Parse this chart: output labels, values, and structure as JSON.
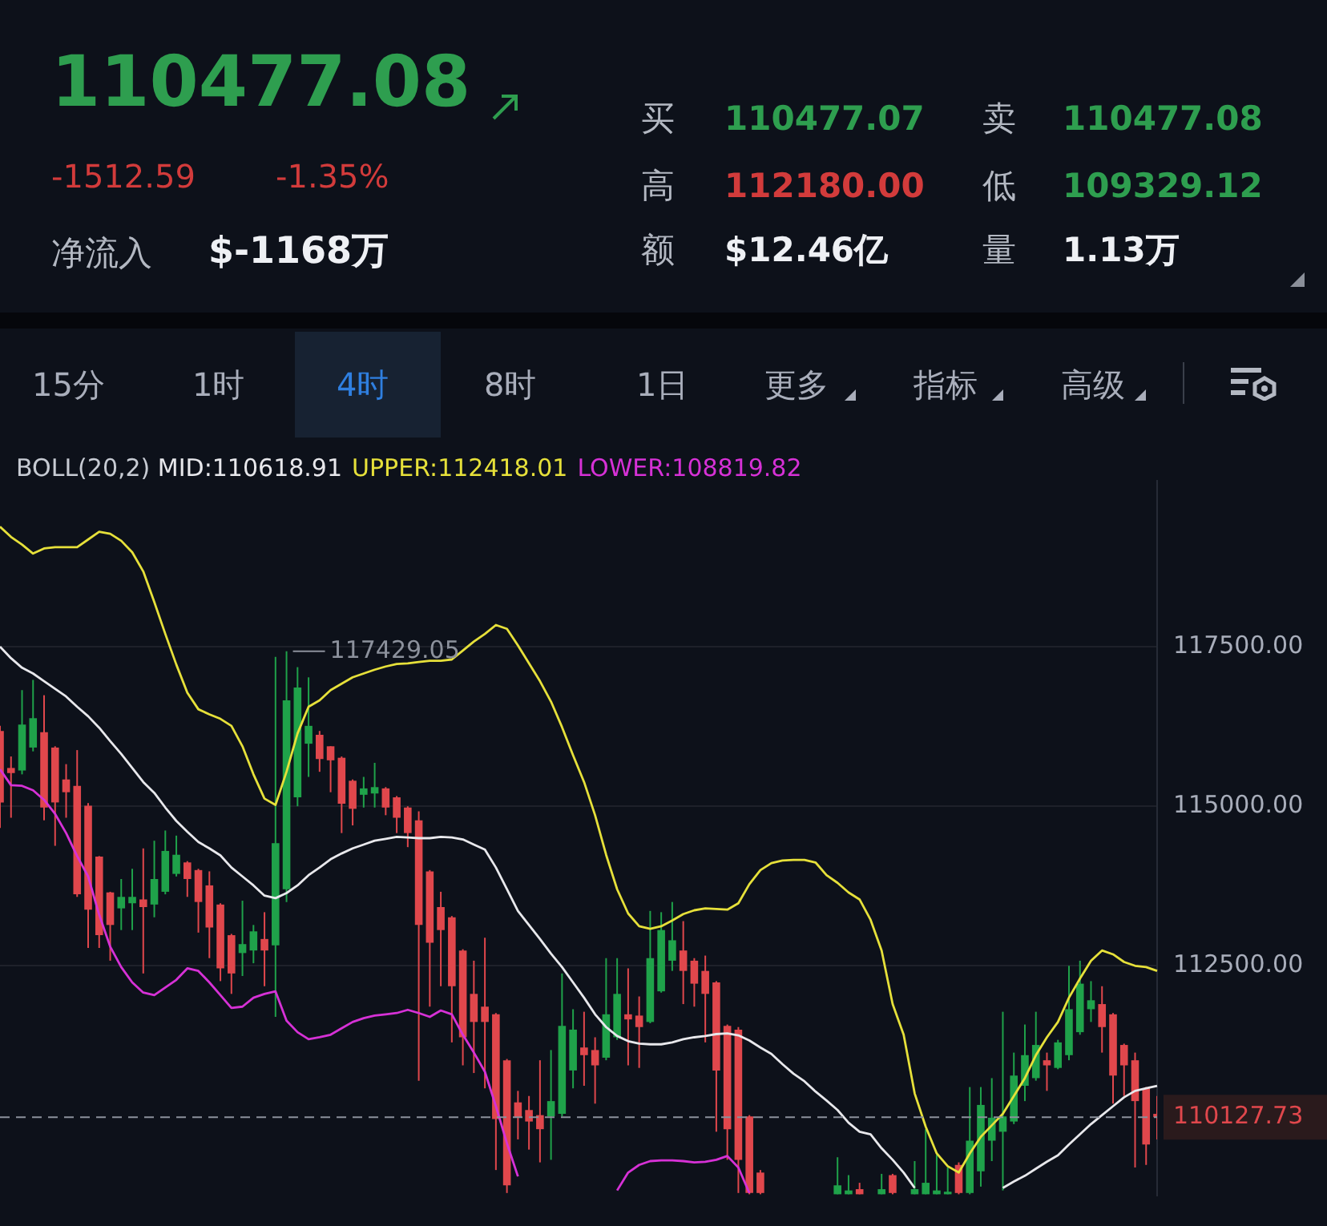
{
  "chart_data": [
    {
      "type": "other",
      "annotations": [
        "110477.08",
        "-1512.59",
        "-1.35%",
        "净流入",
        "$-1168万",
        "买",
        "110477.07",
        "卖",
        "110477.08",
        "高",
        "112180.00",
        "低",
        "109329.12",
        "额",
        "$12.46亿",
        "量",
        "1.13万",
        "15分",
        "1时",
        "4时",
        "8时",
        "1日",
        "更多",
        "指标",
        "高级"
      ]
    },
    {
      "type": "candlestick",
      "legend_title": "BOLL(20,2)",
      "legend": "top",
      "grid": "y",
      "categories": [
        null,
        null,
        null,
        null,
        null,
        null,
        null,
        null,
        null,
        null,
        null,
        null,
        null,
        null,
        null,
        null,
        null,
        null,
        null,
        null,
        null,
        null,
        null,
        null,
        null,
        null,
        null,
        null,
        null,
        null,
        null,
        null,
        null,
        null,
        null,
        null,
        null,
        null,
        null,
        null,
        null,
        null,
        null,
        null,
        null,
        null,
        null,
        null,
        null,
        null,
        null,
        null,
        null,
        null,
        null,
        null,
        null,
        null,
        null,
        null,
        null,
        null,
        null,
        null,
        null,
        null,
        null,
        null,
        null,
        null,
        null,
        null,
        null,
        null,
        null,
        null,
        null,
        null,
        null,
        null,
        null,
        null,
        null,
        null,
        null,
        null,
        null,
        null,
        null,
        null,
        null,
        null,
        null,
        null,
        null,
        null,
        null,
        null,
        null,
        null,
        null,
        null,
        null,
        null,
        null,
        null
      ],
      "ylim": [
        108900,
        120100
      ],
      "yticks": [
        {
          "value": 112500,
          "label": "112500.00"
        },
        {
          "value": 115000,
          "label": "115000.00"
        },
        {
          "value": 117500,
          "label": "117500.00"
        }
      ],
      "ohlc": [
        [
          116180,
          116260,
          114660,
          115060
        ],
        [
          115600,
          115780,
          114820,
          115520
        ],
        [
          115560,
          116820,
          115500,
          116280
        ],
        [
          115920,
          116980,
          115860,
          116380
        ],
        [
          116160,
          116740,
          114780,
          114980
        ],
        [
          115920,
          115940,
          114380,
          115060
        ],
        [
          115420,
          115660,
          114820,
          115220
        ],
        [
          115320,
          115880,
          113580,
          113620
        ],
        [
          115010,
          115050,
          112780,
          113380
        ],
        [
          114210,
          114220,
          112780,
          112980
        ],
        [
          113650,
          113660,
          112580,
          113140
        ],
        [
          113400,
          113860,
          113060,
          113580
        ],
        [
          113480,
          114020,
          113060,
          113580
        ],
        [
          113540,
          114340,
          112380,
          113420
        ],
        [
          113460,
          114460,
          113260,
          113860
        ],
        [
          113660,
          114620,
          113620,
          114300
        ],
        [
          113940,
          114540,
          113900,
          114240
        ],
        [
          114120,
          114140,
          113580,
          113860
        ],
        [
          114000,
          114020,
          113020,
          113500
        ],
        [
          113760,
          113980,
          112620,
          113100
        ],
        [
          113460,
          113480,
          112260,
          112460
        ],
        [
          112980,
          113000,
          112060,
          112380
        ],
        [
          112700,
          113520,
          112340,
          112840
        ],
        [
          112740,
          113140,
          112540,
          113040
        ],
        [
          112920,
          113340,
          112180,
          112740
        ],
        [
          112820,
          117340,
          111700,
          114420
        ],
        [
          113700,
          117429.05,
          113500,
          116660
        ],
        [
          115140,
          117180,
          115000,
          116860
        ],
        [
          115980,
          117020,
          115460,
          116260
        ],
        [
          116120,
          116180,
          115540,
          115740
        ],
        [
          115940,
          115940,
          115220,
          115720
        ],
        [
          115760,
          115780,
          114580,
          115040
        ],
        [
          115400,
          115420,
          114700,
          114960
        ],
        [
          115180,
          115460,
          114980,
          115280
        ],
        [
          115200,
          115680,
          114980,
          115300
        ],
        [
          115280,
          115300,
          114860,
          114980
        ],
        [
          115140,
          115160,
          114580,
          114820
        ],
        [
          114980,
          115000,
          114360,
          114580
        ],
        [
          114780,
          114920,
          110700,
          113140
        ],
        [
          113980,
          114000,
          111860,
          112860
        ],
        [
          113420,
          113660,
          112180,
          113060
        ],
        [
          113260,
          113280,
          111300,
          112180
        ],
        [
          112740,
          112760,
          110940,
          111380
        ],
        [
          112060,
          112580,
          110820,
          111620
        ],
        [
          111860,
          112940,
          110580,
          111620
        ],
        [
          111740,
          111760,
          109300,
          110100
        ],
        [
          111020,
          111040,
          108940,
          109060
        ],
        [
          110360,
          110540,
          109780,
          110120
        ],
        [
          110240,
          110460,
          109620,
          110060
        ],
        [
          110160,
          111020,
          109420,
          109940
        ],
        [
          110140,
          111180,
          109460,
          110380
        ],
        [
          110180,
          112380,
          110140,
          111560
        ],
        [
          110860,
          111820,
          110580,
          111500
        ],
        [
          111220,
          111780,
          110620,
          111100
        ],
        [
          111180,
          111380,
          110340,
          110940
        ],
        [
          111060,
          112620,
          111020,
          111740
        ],
        [
          111380,
          112620,
          111340,
          112060
        ],
        [
          111740,
          112460,
          110940,
          111660
        ],
        [
          111720,
          112020,
          110900,
          111540
        ],
        [
          111620,
          113360,
          111600,
          112620
        ],
        [
          112100,
          113340,
          112080,
          113060
        ],
        [
          112580,
          113500,
          112420,
          112900
        ],
        [
          112740,
          113200,
          111900,
          112420
        ],
        [
          112580,
          112620,
          111860,
          112220
        ],
        [
          112420,
          112660,
          111300,
          112060
        ],
        [
          112240,
          112260,
          109900,
          110860
        ],
        [
          111560,
          111580,
          109460,
          109940
        ],
        [
          111500,
          111540,
          108940,
          109460
        ],
        [
          110140,
          110160,
          108920,
          108940
        ],
        [
          109260,
          109300,
          108920,
          108940
        ],
        null,
        null,
        null,
        null,
        null,
        null,
        [
          108920,
          109500,
          108920,
          109060
        ],
        [
          108920,
          109220,
          108920,
          108980
        ],
        [
          109000,
          109100,
          108920,
          108920
        ],
        null,
        [
          108920,
          109240,
          108920,
          109000
        ],
        [
          109220,
          109240,
          108920,
          108940
        ],
        null,
        [
          108920,
          109440,
          108920,
          109000
        ],
        [
          108920,
          109940,
          108920,
          109100
        ],
        [
          108920,
          109540,
          108920,
          108980
        ],
        [
          108920,
          109340,
          108920,
          108960
        ],
        [
          109380,
          109420,
          108920,
          108940
        ],
        [
          108940,
          110600,
          108920,
          109760
        ],
        [
          109280,
          110600,
          109040,
          110320
        ],
        [
          109760,
          110740,
          109440,
          110120
        ],
        [
          109900,
          111780,
          108980,
          110140
        ],
        [
          110060,
          111140,
          110020,
          110780
        ],
        [
          110620,
          111580,
          110380,
          111100
        ],
        [
          110740,
          111780,
          110700,
          111260
        ],
        [
          111020,
          111140,
          110540,
          110940
        ],
        [
          110900,
          111340,
          110880,
          111300
        ],
        [
          111100,
          112500,
          111020,
          111820
        ],
        [
          111460,
          112580,
          111420,
          112220
        ],
        [
          111820,
          112260,
          111620,
          111960
        ],
        [
          111900,
          112180,
          111140,
          111540
        ],
        [
          111740,
          111760,
          110340,
          110780
        ],
        [
          111260,
          111280,
          110460,
          110940
        ],
        [
          111020,
          111140,
          109340,
          110380
        ],
        [
          110580,
          110600,
          109380,
          109700
        ],
        [
          110180,
          110460,
          109780,
          110127.73
        ]
      ],
      "series": [
        {
          "type": "line",
          "name": "MID:110618.91",
          "color": "#e8e8ec",
          "values": [
            117500,
            117320,
            117170,
            117080,
            116960,
            116840,
            116720,
            116560,
            116410,
            116230,
            116020,
            115820,
            115600,
            115380,
            115210,
            114980,
            114770,
            114600,
            114440,
            114340,
            114230,
            114040,
            113900,
            113760,
            113600,
            113560,
            113640,
            113760,
            113920,
            114040,
            114170,
            114260,
            114340,
            114400,
            114460,
            114490,
            114520,
            114510,
            114500,
            114500,
            114520,
            114510,
            114480,
            114400,
            114320,
            114040,
            113700,
            113360,
            113140,
            112920,
            112690,
            112480,
            112240,
            112000,
            111740,
            111540,
            111400,
            111320,
            111280,
            111270,
            111270,
            111300,
            111350,
            111380,
            111400,
            111430,
            111440,
            111410,
            111330,
            111220,
            111120,
            110960,
            110810,
            110690,
            110530,
            110390,
            110240,
            110040,
            109900,
            109860,
            109640,
            109460,
            109260,
            109020,
            null,
            null,
            null,
            null,
            null,
            null,
            null,
            109020,
            109120,
            109210,
            109320,
            109430,
            109530,
            109700,
            109860,
            110020,
            110160,
            110300,
            110440,
            110540,
            110580,
            110620
          ]
        },
        {
          "type": "line",
          "name": "UPPER:112418.01",
          "color": "#e6e03a",
          "values": [
            119380,
            119220,
            119100,
            118960,
            119040,
            119060,
            119060,
            119060,
            119180,
            119300,
            119270,
            119160,
            118980,
            118680,
            118200,
            117700,
            117220,
            116780,
            116520,
            116440,
            116370,
            116260,
            115940,
            115500,
            115120,
            115020,
            115540,
            116140,
            116560,
            116660,
            116820,
            116920,
            117020,
            117080,
            117140,
            117190,
            117230,
            117240,
            117260,
            117280,
            117280,
            117300,
            117440,
            117580,
            117700,
            117840,
            117780,
            117520,
            117240,
            116960,
            116640,
            116240,
            115800,
            115380,
            114860,
            114240,
            113700,
            113320,
            113120,
            113080,
            113120,
            113210,
            113310,
            113370,
            113400,
            113390,
            113380,
            113480,
            113780,
            114000,
            114110,
            114150,
            114160,
            114160,
            114120,
            113920,
            113800,
            113650,
            113540,
            113220,
            112740,
            111900,
            111420,
            110500,
            109980,
            109560,
            109360,
            109260,
            109560,
            109820,
            110000,
            110180,
            110460,
            110740,
            111100,
            111380,
            111620,
            112000,
            112300,
            112580,
            112740,
            112680,
            112560,
            112500,
            112480,
            112420
          ]
        },
        {
          "type": "line",
          "name": "LOWER:108819.82",
          "color": "#d631d6",
          "values": [
            115580,
            115330,
            115320,
            115250,
            115100,
            114880,
            114580,
            114220,
            113900,
            113300,
            112800,
            112480,
            112240,
            112080,
            112040,
            112160,
            112280,
            112460,
            112420,
            112240,
            112040,
            111840,
            111860,
            112000,
            112060,
            112100,
            111640,
            111460,
            111350,
            111380,
            111420,
            111520,
            111620,
            111680,
            111720,
            111740,
            111760,
            111810,
            111760,
            111700,
            111800,
            111740,
            111420,
            111140,
            110840,
            110300,
            109720,
            109200,
            null,
            null,
            null,
            null,
            null,
            null,
            null,
            null,
            108980,
            109260,
            109380,
            109440,
            109450,
            109450,
            109440,
            109420,
            109430,
            109460,
            109520,
            109340,
            108940,
            null,
            null,
            null,
            null,
            null,
            null,
            null,
            null,
            null,
            null,
            null,
            null,
            null,
            null,
            null,
            null,
            null,
            null,
            null,
            null,
            null,
            null,
            null,
            null,
            null,
            null,
            null,
            null,
            null,
            null,
            null,
            null,
            null,
            null,
            null,
            null,
            null
          ]
        }
      ],
      "ref_lines": [
        {
          "axis": "y",
          "value": 110127.73,
          "label": "110127.73",
          "color": "#8c919c",
          "line_style": "dashed"
        }
      ],
      "annotations": [
        "117429.05"
      ]
    }
  ]
}
